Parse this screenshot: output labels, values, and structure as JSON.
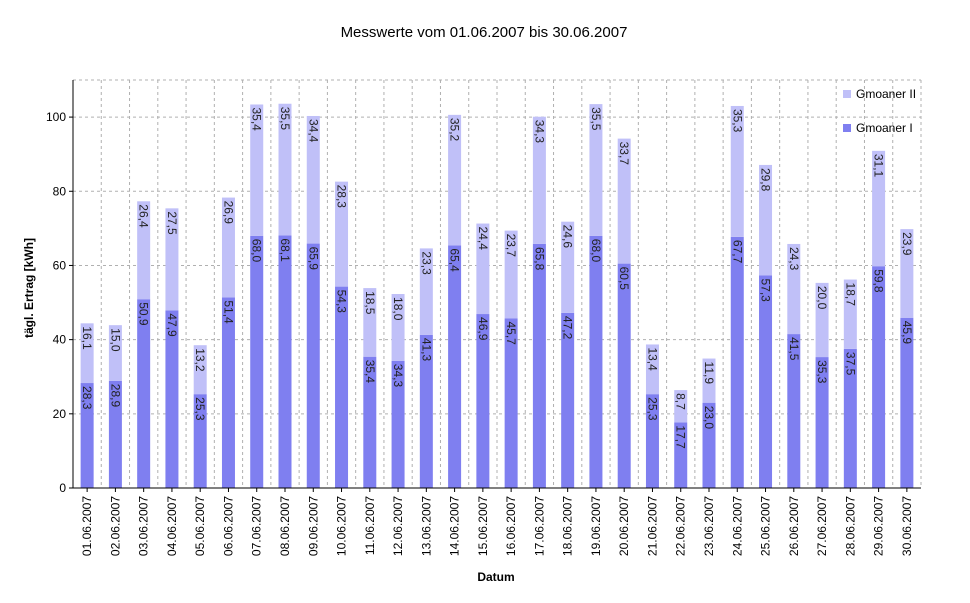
{
  "chart_data": {
    "type": "bar",
    "stacked": true,
    "title": "Messwerte vom 01.06.2007 bis 30.06.2007",
    "xlabel": "Datum",
    "ylabel": "tägl. Ertrag [kWh]",
    "ylim": [
      0,
      110
    ],
    "yticks": [
      0,
      20,
      40,
      60,
      80,
      100
    ],
    "grid": true,
    "legend_position": "top-right",
    "categories": [
      "01.06.2007",
      "02.06.2007",
      "03.06.2007",
      "04.06.2007",
      "05.06.2007",
      "06.06.2007",
      "07.06.2007",
      "08.06.2007",
      "09.06.2007",
      "10.06.2007",
      "11.06.2007",
      "12.06.2007",
      "13.06.2007",
      "14.06.2007",
      "15.06.2007",
      "16.06.2007",
      "17.06.2007",
      "18.06.2007",
      "19.06.2007",
      "20.06.2007",
      "21.06.2007",
      "22.06.2007",
      "23.06.2007",
      "24.06.2007",
      "25.06.2007",
      "26.06.2007",
      "27.06.2007",
      "28.06.2007",
      "29.06.2007",
      "30.06.2007"
    ],
    "series": [
      {
        "name": "Gmoaner I",
        "color": "#7f7ff0",
        "values": [
          28.3,
          28.9,
          50.9,
          47.9,
          25.3,
          51.4,
          68.0,
          68.1,
          65.9,
          54.3,
          35.4,
          34.3,
          41.3,
          65.4,
          46.9,
          45.7,
          65.8,
          47.2,
          68.0,
          60.5,
          25.3,
          17.7,
          23.0,
          67.7,
          57.3,
          41.5,
          35.3,
          37.5,
          59.8,
          45.9
        ],
        "labels": [
          "28,3",
          "28,9",
          "50,9",
          "47,9",
          "25,3",
          "51,4",
          "68,0",
          "68,1",
          "65,9",
          "54,3",
          "35,4",
          "34,3",
          "41,3",
          "65,4",
          "46,9",
          "45,7",
          "65,8",
          "47,2",
          "68,0",
          "60,5",
          "25,3",
          "17,7",
          "23,0",
          "67,7",
          "57,3",
          "41,5",
          "35,3",
          "37,5",
          "59,8",
          "45,9"
        ]
      },
      {
        "name": "Gmoaner II",
        "color": "#c0c0f8",
        "values": [
          16.1,
          15.0,
          26.4,
          27.5,
          13.2,
          26.9,
          35.4,
          35.5,
          34.4,
          28.3,
          18.5,
          18.0,
          23.3,
          35.2,
          24.4,
          23.7,
          34.3,
          24.6,
          35.5,
          33.7,
          13.4,
          8.7,
          11.9,
          35.3,
          29.8,
          24.3,
          20.0,
          18.7,
          31.1,
          23.9
        ],
        "labels": [
          "16,1",
          "15,0",
          "26,4",
          "27,5",
          "13,2",
          "26,9",
          "35,4",
          "35,5",
          "34,4",
          "28,3",
          "18,5",
          "18,0",
          "23,3",
          "35,2",
          "24,4",
          "23,7",
          "34,3",
          "24,6",
          "35,5",
          "33,7",
          "13,4",
          "8,7",
          "11,9",
          "35,3",
          "29,8",
          "24,3",
          "20,0",
          "18,7",
          "31,1",
          "23,9"
        ]
      }
    ],
    "legend_order": [
      "Gmoaner II",
      "Gmoaner I"
    ],
    "colors": {
      "grid": "#b0b0b0",
      "axis": "#000000",
      "plot_bg": "#ffffff"
    }
  }
}
